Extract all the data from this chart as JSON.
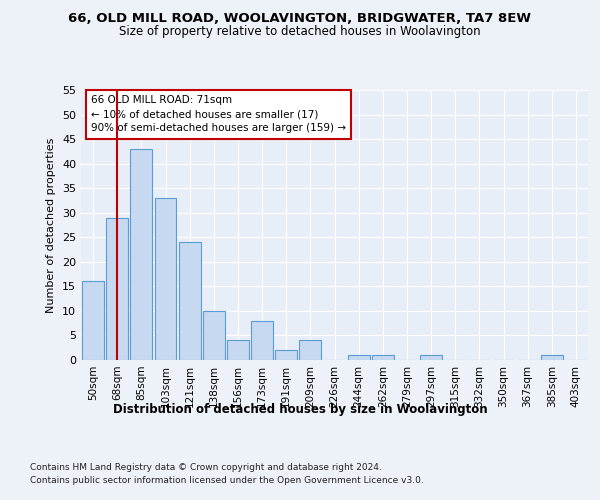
{
  "title1": "66, OLD MILL ROAD, WOOLAVINGTON, BRIDGWATER, TA7 8EW",
  "title2": "Size of property relative to detached houses in Woolavington",
  "xlabel": "Distribution of detached houses by size in Woolavington",
  "ylabel": "Number of detached properties",
  "categories": [
    "50sqm",
    "68sqm",
    "85sqm",
    "103sqm",
    "121sqm",
    "138sqm",
    "156sqm",
    "173sqm",
    "191sqm",
    "209sqm",
    "226sqm",
    "244sqm",
    "262sqm",
    "279sqm",
    "297sqm",
    "315sqm",
    "332sqm",
    "350sqm",
    "367sqm",
    "385sqm",
    "403sqm"
  ],
  "values": [
    16,
    29,
    43,
    33,
    24,
    10,
    4,
    8,
    2,
    4,
    0,
    1,
    1,
    0,
    1,
    0,
    0,
    0,
    0,
    1,
    0
  ],
  "bar_color": "#c6d9f0",
  "bar_edge_color": "#5b9bd5",
  "vline_x": 1,
  "vline_color": "#c00000",
  "annotation_text": "66 OLD MILL ROAD: 71sqm\n← 10% of detached houses are smaller (17)\n90% of semi-detached houses are larger (159) →",
  "annotation_box_color": "#ffffff",
  "annotation_box_edge": "#c00000",
  "ylim": [
    0,
    55
  ],
  "yticks": [
    0,
    5,
    10,
    15,
    20,
    25,
    30,
    35,
    40,
    45,
    50,
    55
  ],
  "footer1": "Contains HM Land Registry data © Crown copyright and database right 2024.",
  "footer2": "Contains public sector information licensed under the Open Government Licence v3.0.",
  "bg_color": "#edf2f9",
  "plot_bg_color": "#e8eef8"
}
